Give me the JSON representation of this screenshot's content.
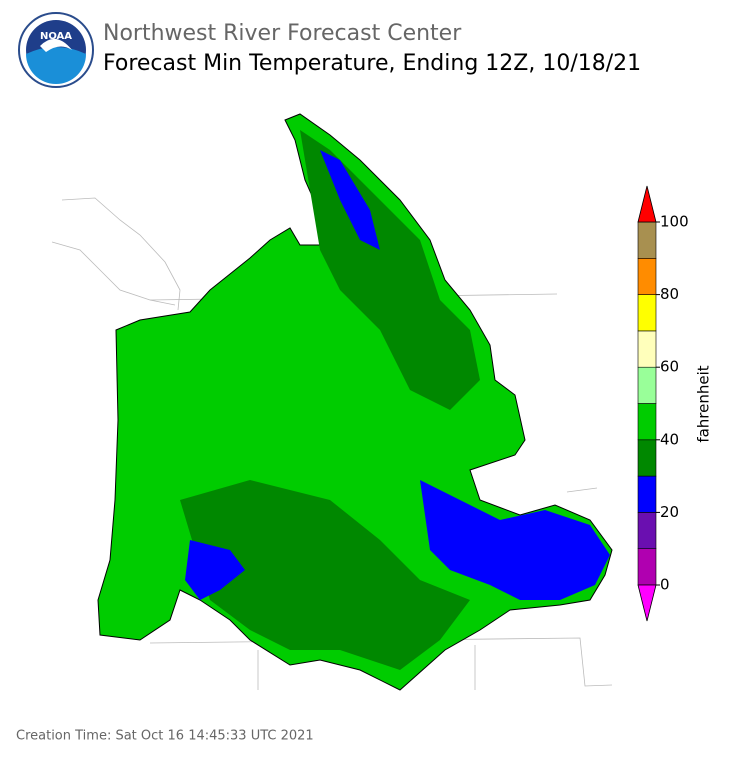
{
  "header": {
    "logo_text": "NOAA",
    "org": "Northwest River Forecast Center",
    "title": "Forecast Min Temperature, Ending 12Z, 10/18/21"
  },
  "colorbar": {
    "label": "fahrenheit",
    "ticks": [
      0,
      20,
      40,
      60,
      80,
      100
    ],
    "bins": [
      0,
      10,
      20,
      30,
      40,
      50,
      60,
      70,
      80,
      90,
      100
    ],
    "colors": [
      "#b000b0",
      "#6a0fb0",
      "#0000ff",
      "#008800",
      "#00cc00",
      "#99ff99",
      "#ffffbb",
      "#ffff00",
      "#ff8c00",
      "#a89050"
    ],
    "under_color": "#ff00ff",
    "over_color": "#ff0000"
  },
  "footer": {
    "creation_time": "Creation Time: Sat Oct 16 14:45:33 UTC 2021"
  }
}
